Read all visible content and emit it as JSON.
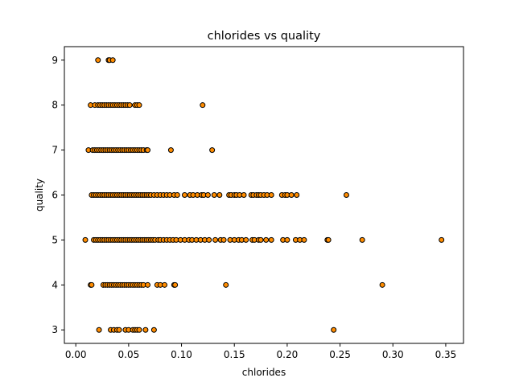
{
  "chart_data": {
    "type": "scatter",
    "title": "chlorides vs quality",
    "xlabel": "chlorides",
    "ylabel": "quality",
    "xlim": [
      -0.0108,
      0.3668
    ],
    "ylim": [
      2.7,
      9.3
    ],
    "xticks": [
      0.0,
      0.05,
      0.1,
      0.15,
      0.2,
      0.25,
      0.3,
      0.35
    ],
    "xtick_labels": [
      "0.00",
      "0.05",
      "0.10",
      "0.15",
      "0.20",
      "0.25",
      "0.30",
      "0.35"
    ],
    "yticks": [
      3,
      4,
      5,
      6,
      7,
      8,
      9
    ],
    "ytick_labels": [
      "3",
      "4",
      "5",
      "6",
      "7",
      "8",
      "9"
    ],
    "grid": false,
    "marker_color": "#ff8c00",
    "marker_edge_color": "#000000",
    "series": [
      {
        "points": [
          [
            0.022,
            3
          ],
          [
            0.033,
            3
          ],
          [
            0.036,
            3
          ],
          [
            0.039,
            3
          ],
          [
            0.041,
            3
          ],
          [
            0.047,
            3
          ],
          [
            0.05,
            3
          ],
          [
            0.054,
            3
          ],
          [
            0.056,
            3
          ],
          [
            0.058,
            3
          ],
          [
            0.06,
            3
          ],
          [
            0.066,
            3
          ],
          [
            0.074,
            3
          ],
          [
            0.244,
            3
          ],
          [
            0.014,
            4
          ],
          [
            0.015,
            4
          ],
          [
            0.026,
            4
          ],
          [
            0.028,
            4
          ],
          [
            0.03,
            4
          ],
          [
            0.032,
            4
          ],
          [
            0.034,
            4
          ],
          [
            0.036,
            4
          ],
          [
            0.038,
            4
          ],
          [
            0.04,
            4
          ],
          [
            0.042,
            4
          ],
          [
            0.044,
            4
          ],
          [
            0.046,
            4
          ],
          [
            0.048,
            4
          ],
          [
            0.05,
            4
          ],
          [
            0.052,
            4
          ],
          [
            0.054,
            4
          ],
          [
            0.056,
            4
          ],
          [
            0.058,
            4
          ],
          [
            0.06,
            4
          ],
          [
            0.062,
            4
          ],
          [
            0.064,
            4
          ],
          [
            0.068,
            4
          ],
          [
            0.077,
            4
          ],
          [
            0.08,
            4
          ],
          [
            0.084,
            4
          ],
          [
            0.093,
            4
          ],
          [
            0.094,
            4
          ],
          [
            0.142,
            4
          ],
          [
            0.29,
            4
          ],
          [
            0.009,
            5
          ],
          [
            0.017,
            5
          ],
          [
            0.019,
            5
          ],
          [
            0.021,
            5
          ],
          [
            0.023,
            5
          ],
          [
            0.025,
            5
          ],
          [
            0.027,
            5
          ],
          [
            0.029,
            5
          ],
          [
            0.031,
            5
          ],
          [
            0.033,
            5
          ],
          [
            0.035,
            5
          ],
          [
            0.037,
            5
          ],
          [
            0.039,
            5
          ],
          [
            0.041,
            5
          ],
          [
            0.043,
            5
          ],
          [
            0.045,
            5
          ],
          [
            0.047,
            5
          ],
          [
            0.049,
            5
          ],
          [
            0.051,
            5
          ],
          [
            0.053,
            5
          ],
          [
            0.055,
            5
          ],
          [
            0.057,
            5
          ],
          [
            0.059,
            5
          ],
          [
            0.061,
            5
          ],
          [
            0.063,
            5
          ],
          [
            0.065,
            5
          ],
          [
            0.067,
            5
          ],
          [
            0.069,
            5
          ],
          [
            0.071,
            5
          ],
          [
            0.073,
            5
          ],
          [
            0.075,
            5
          ],
          [
            0.078,
            5
          ],
          [
            0.08,
            5
          ],
          [
            0.083,
            5
          ],
          [
            0.086,
            5
          ],
          [
            0.089,
            5
          ],
          [
            0.092,
            5
          ],
          [
            0.095,
            5
          ],
          [
            0.099,
            5
          ],
          [
            0.103,
            5
          ],
          [
            0.107,
            5
          ],
          [
            0.11,
            5
          ],
          [
            0.114,
            5
          ],
          [
            0.118,
            5
          ],
          [
            0.122,
            5
          ],
          [
            0.126,
            5
          ],
          [
            0.132,
            5
          ],
          [
            0.137,
            5
          ],
          [
            0.14,
            5
          ],
          [
            0.146,
            5
          ],
          [
            0.15,
            5
          ],
          [
            0.154,
            5
          ],
          [
            0.157,
            5
          ],
          [
            0.161,
            5
          ],
          [
            0.167,
            5
          ],
          [
            0.169,
            5
          ],
          [
            0.173,
            5
          ],
          [
            0.175,
            5
          ],
          [
            0.18,
            5
          ],
          [
            0.185,
            5
          ],
          [
            0.196,
            5
          ],
          [
            0.2,
            5
          ],
          [
            0.208,
            5
          ],
          [
            0.212,
            5
          ],
          [
            0.216,
            5
          ],
          [
            0.238,
            5
          ],
          [
            0.239,
            5
          ],
          [
            0.271,
            5
          ],
          [
            0.346,
            5
          ],
          [
            0.015,
            6
          ],
          [
            0.017,
            6
          ],
          [
            0.019,
            6
          ],
          [
            0.021,
            6
          ],
          [
            0.023,
            6
          ],
          [
            0.025,
            6
          ],
          [
            0.027,
            6
          ],
          [
            0.029,
            6
          ],
          [
            0.031,
            6
          ],
          [
            0.033,
            6
          ],
          [
            0.035,
            6
          ],
          [
            0.037,
            6
          ],
          [
            0.039,
            6
          ],
          [
            0.041,
            6
          ],
          [
            0.043,
            6
          ],
          [
            0.045,
            6
          ],
          [
            0.047,
            6
          ],
          [
            0.049,
            6
          ],
          [
            0.051,
            6
          ],
          [
            0.053,
            6
          ],
          [
            0.055,
            6
          ],
          [
            0.057,
            6
          ],
          [
            0.059,
            6
          ],
          [
            0.061,
            6
          ],
          [
            0.063,
            6
          ],
          [
            0.065,
            6
          ],
          [
            0.067,
            6
          ],
          [
            0.069,
            6
          ],
          [
            0.071,
            6
          ],
          [
            0.074,
            6
          ],
          [
            0.077,
            6
          ],
          [
            0.08,
            6
          ],
          [
            0.083,
            6
          ],
          [
            0.086,
            6
          ],
          [
            0.089,
            6
          ],
          [
            0.093,
            6
          ],
          [
            0.096,
            6
          ],
          [
            0.103,
            6
          ],
          [
            0.108,
            6
          ],
          [
            0.111,
            6
          ],
          [
            0.115,
            6
          ],
          [
            0.119,
            6
          ],
          [
            0.121,
            6
          ],
          [
            0.125,
            6
          ],
          [
            0.131,
            6
          ],
          [
            0.136,
            6
          ],
          [
            0.145,
            6
          ],
          [
            0.147,
            6
          ],
          [
            0.15,
            6
          ],
          [
            0.152,
            6
          ],
          [
            0.155,
            6
          ],
          [
            0.159,
            6
          ],
          [
            0.166,
            6
          ],
          [
            0.168,
            6
          ],
          [
            0.171,
            6
          ],
          [
            0.173,
            6
          ],
          [
            0.175,
            6
          ],
          [
            0.178,
            6
          ],
          [
            0.181,
            6
          ],
          [
            0.185,
            6
          ],
          [
            0.195,
            6
          ],
          [
            0.198,
            6
          ],
          [
            0.2,
            6
          ],
          [
            0.204,
            6
          ],
          [
            0.209,
            6
          ],
          [
            0.256,
            6
          ],
          [
            0.012,
            7
          ],
          [
            0.016,
            7
          ],
          [
            0.018,
            7
          ],
          [
            0.02,
            7
          ],
          [
            0.022,
            7
          ],
          [
            0.024,
            7
          ],
          [
            0.026,
            7
          ],
          [
            0.028,
            7
          ],
          [
            0.03,
            7
          ],
          [
            0.032,
            7
          ],
          [
            0.034,
            7
          ],
          [
            0.036,
            7
          ],
          [
            0.038,
            7
          ],
          [
            0.04,
            7
          ],
          [
            0.042,
            7
          ],
          [
            0.044,
            7
          ],
          [
            0.046,
            7
          ],
          [
            0.048,
            7
          ],
          [
            0.05,
            7
          ],
          [
            0.052,
            7
          ],
          [
            0.054,
            7
          ],
          [
            0.056,
            7
          ],
          [
            0.058,
            7
          ],
          [
            0.06,
            7
          ],
          [
            0.062,
            7
          ],
          [
            0.064,
            7
          ],
          [
            0.067,
            7
          ],
          [
            0.068,
            7
          ],
          [
            0.09,
            7
          ],
          [
            0.129,
            7
          ],
          [
            0.014,
            8
          ],
          [
            0.018,
            8
          ],
          [
            0.021,
            8
          ],
          [
            0.023,
            8
          ],
          [
            0.025,
            8
          ],
          [
            0.027,
            8
          ],
          [
            0.029,
            8
          ],
          [
            0.031,
            8
          ],
          [
            0.033,
            8
          ],
          [
            0.035,
            8
          ],
          [
            0.037,
            8
          ],
          [
            0.039,
            8
          ],
          [
            0.041,
            8
          ],
          [
            0.043,
            8
          ],
          [
            0.045,
            8
          ],
          [
            0.047,
            8
          ],
          [
            0.049,
            8
          ],
          [
            0.051,
            8
          ],
          [
            0.056,
            8
          ],
          [
            0.058,
            8
          ],
          [
            0.06,
            8
          ],
          [
            0.12,
            8
          ],
          [
            0.021,
            9
          ],
          [
            0.031,
            9
          ],
          [
            0.032,
            9
          ],
          [
            0.035,
            9
          ]
        ]
      }
    ]
  }
}
